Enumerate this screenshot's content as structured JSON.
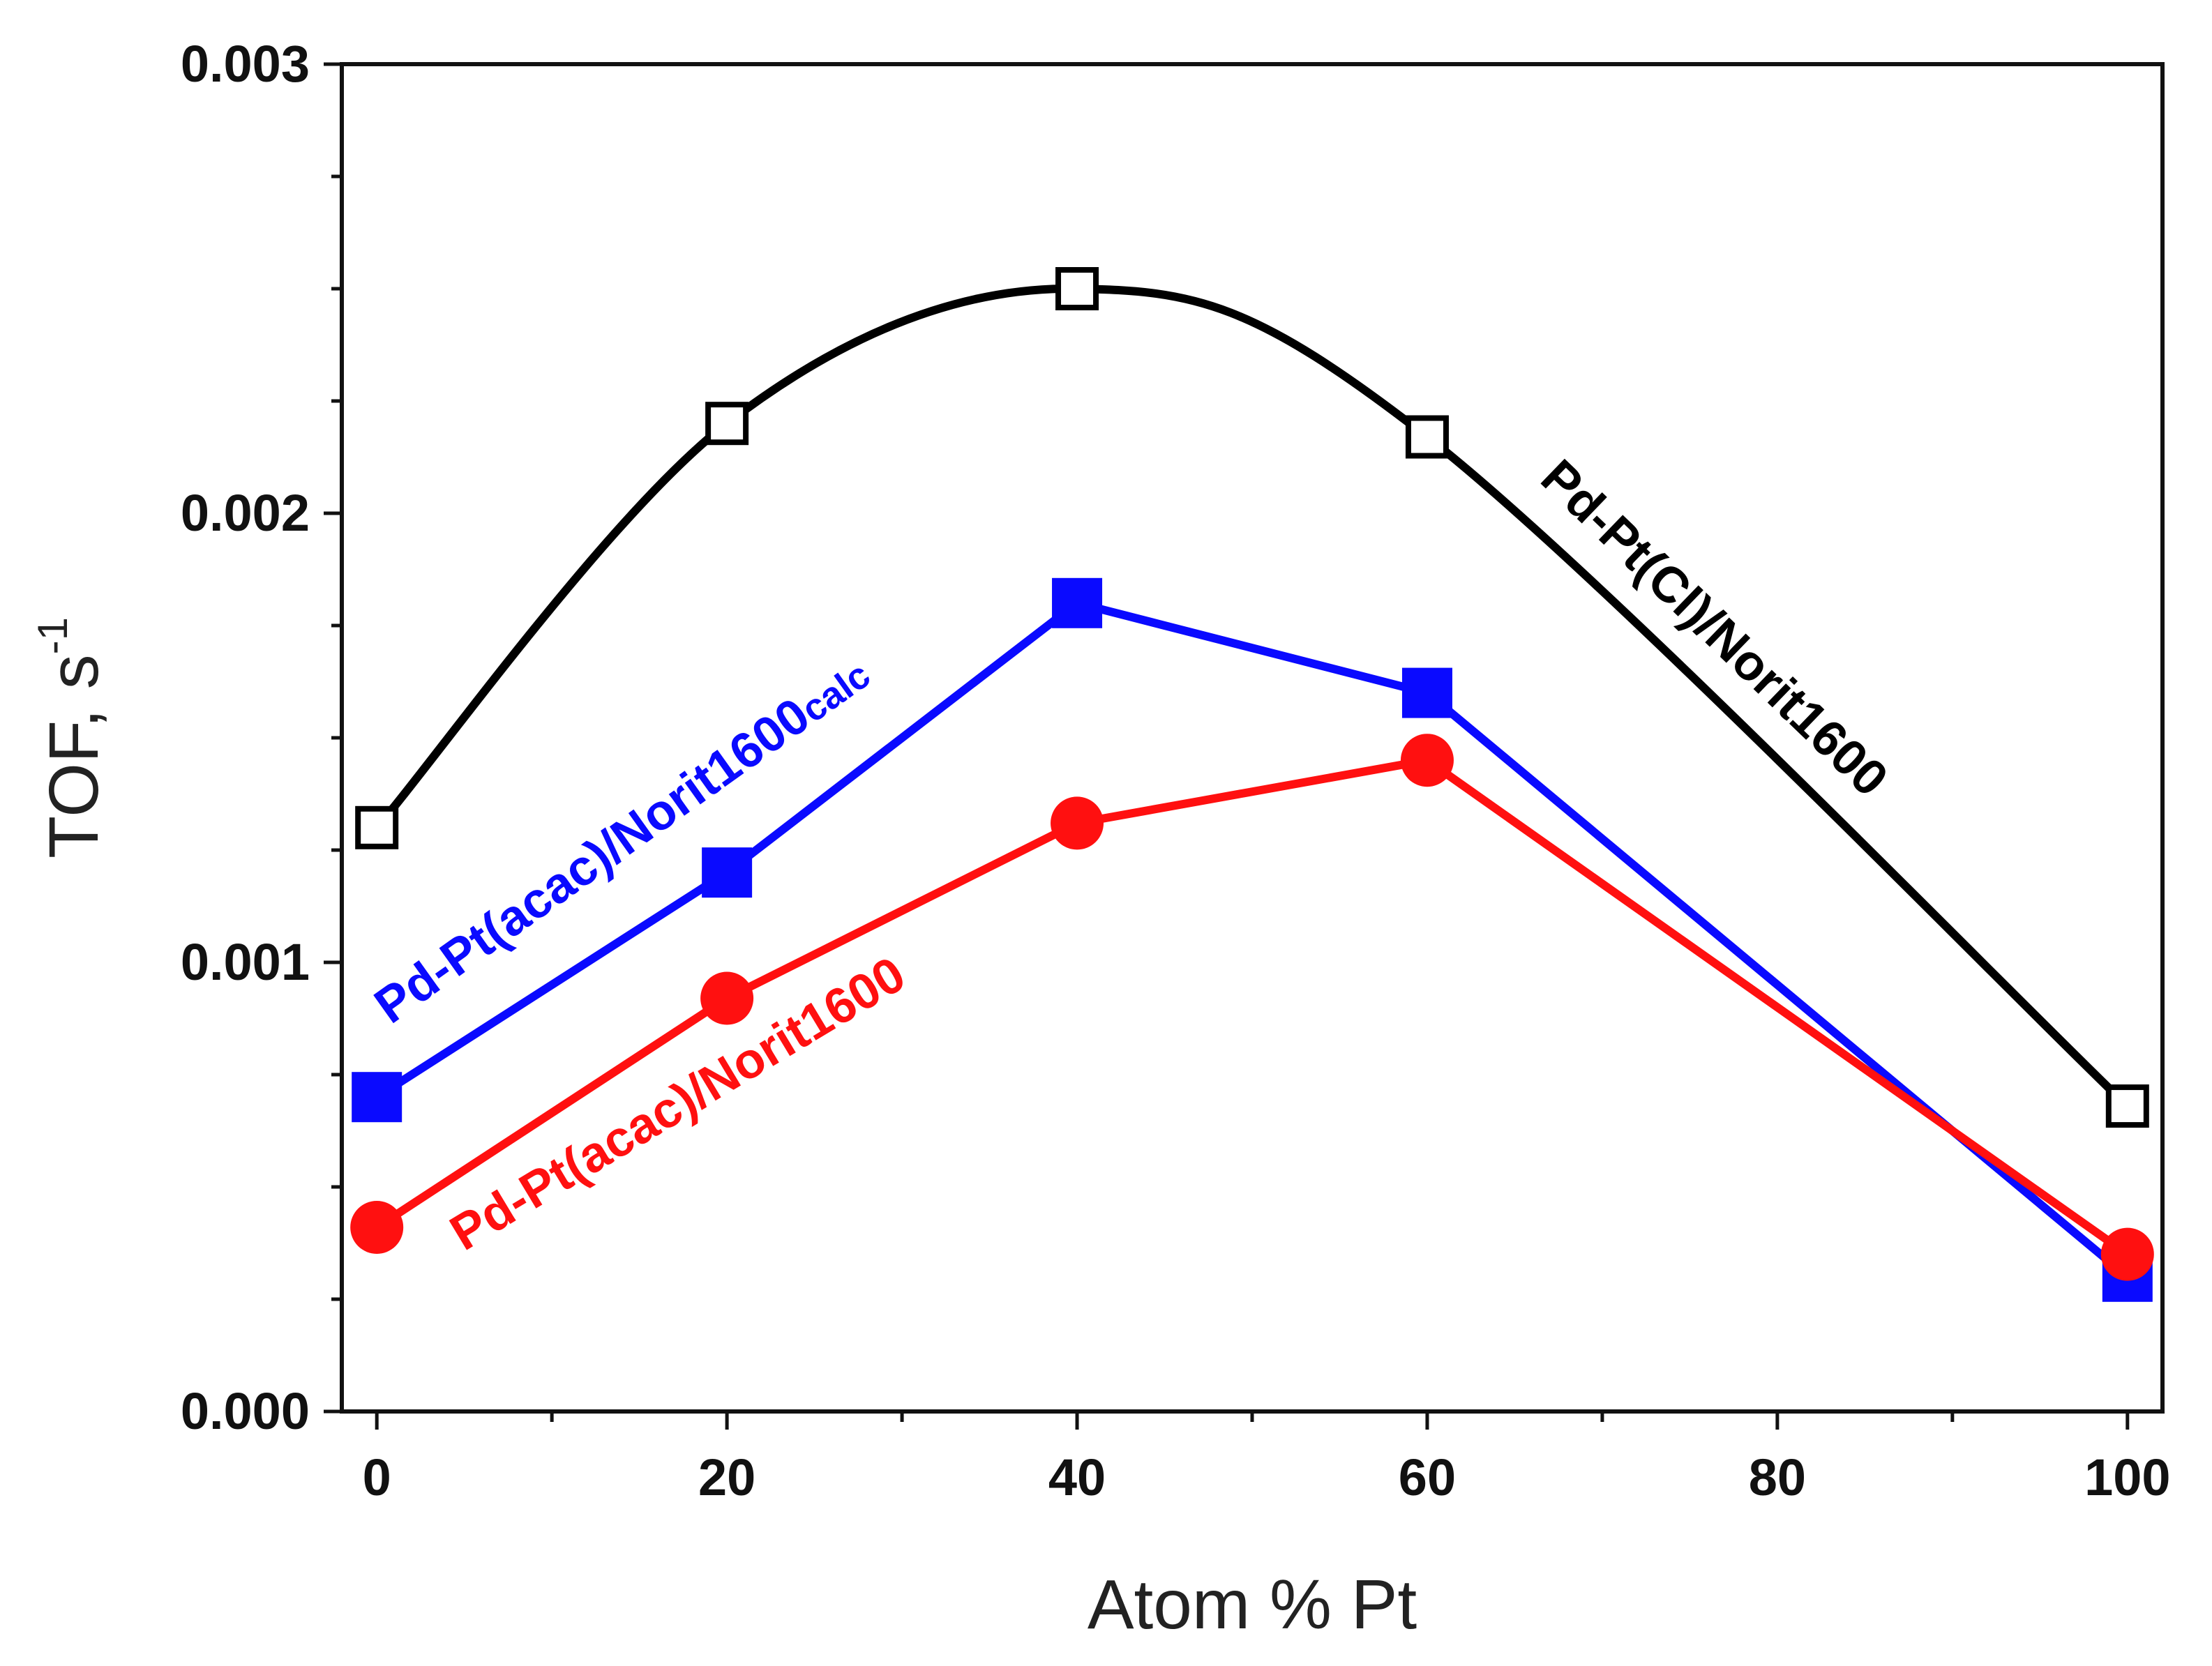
{
  "chart_data": {
    "type": "line",
    "xlabel": "Atom % Pt",
    "ylabel": "TOF, s",
    "ylabel_superscript": "-1",
    "xlim": [
      -2,
      102
    ],
    "ylim": [
      0,
      0.003
    ],
    "x_ticks": [
      0,
      20,
      40,
      60,
      80,
      100
    ],
    "x_tick_labels": [
      "0",
      "20",
      "40",
      "60",
      "80",
      "100"
    ],
    "y_ticks": [
      0,
      0.001,
      0.002,
      0.003
    ],
    "y_tick_labels": [
      "0.000",
      "0.001",
      "0.002",
      "0.003"
    ],
    "grid": false,
    "series": [
      {
        "name": "Pd-Pt(Cl)/Norit1600",
        "label_text": "Pd-Pt(Cl)/Norit1600",
        "x": [
          0,
          20,
          40,
          60,
          100
        ],
        "values": [
          0.0013,
          0.0022,
          0.0025,
          0.00217,
          0.00068
        ],
        "marker": "open-square",
        "color": "#000000",
        "smooth": true
      },
      {
        "name": "Pd-Pt(acac)/Norit1600calc",
        "label_text": "Pd-Pt(acac)/Norit1600",
        "label_subscript": "calc",
        "x": [
          0,
          20,
          40,
          60,
          100
        ],
        "values": [
          0.0007,
          0.0012,
          0.0018,
          0.0016,
          0.0003
        ],
        "marker": "filled-square",
        "color": "#0a0aff",
        "smooth": false
      },
      {
        "name": "Pd-Pt(acac)/Norit1600",
        "label_text": "Pd-Pt(acac)/Norit1600",
        "x": [
          0,
          20,
          40,
          60,
          100
        ],
        "values": [
          0.00041,
          0.00092,
          0.00131,
          0.00145,
          0.00035
        ],
        "marker": "filled-circle",
        "color": "#ff1010",
        "smooth": false
      }
    ]
  }
}
